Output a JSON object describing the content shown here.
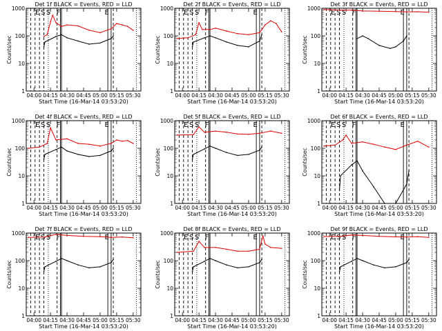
{
  "figure": {
    "panels": [
      {
        "title": "Det 1f  BLACK = Events, RED = LLD",
        "ylabel": "Counts/sec",
        "xlabel": "Start Time (16-Mar-14 03:53:20)"
      },
      {
        "title": "Det 2f  BLACK = Events, RED = LLD",
        "ylabel": "Counts/sec",
        "xlabel": "Start Time (16-Mar-14 03:53:20)"
      },
      {
        "title": "Det 3f  BLACK = Events, RED = LLD",
        "ylabel": "Counts/sec",
        "xlabel": "Start Time (16-Mar-14 03:53:20)"
      },
      {
        "title": "Det 4f  BLACK = Events, RED = LLD",
        "ylabel": "Counts/sec",
        "xlabel": "Start Time (16-Mar-14 03:53:20)"
      },
      {
        "title": "Det 5f  BLACK = Events, RED = LLD",
        "ylabel": "Counts/sec",
        "xlabel": "Start Time (16-Mar-14 03:53:20)"
      },
      {
        "title": "Det 6f  BLACK = Events, RED = LLD",
        "ylabel": "Counts/sec",
        "xlabel": "Start Time (16-Mar-14 03:53:20)"
      },
      {
        "title": "Det 7f  BLACK = Events, RED = LLD",
        "ylabel": "Counts/sec",
        "xlabel": "Start Time (16-Mar-14 03:53:20)"
      },
      {
        "title": "Det 8f  BLACK = Events, RED = LLD",
        "ylabel": "Counts/sec",
        "xlabel": "Start Time (16-Mar-14 03:53:20)"
      },
      {
        "title": "Det 9f  BLACK = Events, RED = LLD",
        "ylabel": "Counts/sec",
        "xlabel": "Start Time (16-Mar-14 03:53:20)"
      }
    ],
    "colors": {
      "events": "#000000",
      "lld": "#dd0000"
    }
  },
  "chart_data": [
    {
      "type": "line",
      "title": "Det 1f  BLACK = Events, RED = LLD",
      "xlabel": "Start Time (16-Mar-14 03:53:20)",
      "ylabel": "Counts/sec",
      "yscale": "log",
      "ylim": [
        1,
        1000
      ],
      "x_ticks": [
        "04:00",
        "04:15",
        "04:30",
        "04:45",
        "05:00",
        "05:15",
        "05:30"
      ],
      "y_ticks": [
        "1",
        "10",
        "100",
        "1000"
      ],
      "markers": [
        "E",
        "S",
        "S",
        "F",
        "E"
      ],
      "series": [
        {
          "name": "LLD",
          "x": [
            "04:09",
            "04:12",
            "04:15",
            "04:17",
            "04:20",
            "04:25",
            "04:30",
            "04:40",
            "04:50",
            "05:00",
            "05:10",
            "05:15",
            "05:20",
            "05:25",
            "05:30"
          ],
          "y": [
            95,
            110,
            320,
            560,
            300,
            220,
            250,
            230,
            160,
            130,
            180,
            280,
            250,
            220,
            160
          ]
        },
        {
          "name": "Events",
          "x": [
            "04:09",
            "04:10",
            "04:20",
            "04:25",
            "04:30",
            "04:40",
            "04:50",
            "05:00",
            "05:10",
            "05:12"
          ],
          "y": [
            40,
            60,
            95,
            110,
            85,
            65,
            50,
            55,
            80,
            100
          ]
        }
      ]
    },
    {
      "type": "line",
      "title": "Det 2f  BLACK = Events, RED = LLD",
      "xlabel": "Start Time (16-Mar-14 03:53:20)",
      "ylabel": "Counts/sec",
      "yscale": "log",
      "ylim": [
        1,
        1000
      ],
      "x_ticks": [
        "04:00",
        "04:15",
        "04:30",
        "04:45",
        "05:00",
        "05:15",
        "05:30"
      ],
      "y_ticks": [
        "1",
        "10",
        "100",
        "1000"
      ],
      "markers": [
        "E",
        "S",
        "S",
        "F",
        "E"
      ],
      "series": [
        {
          "name": "LLD",
          "x": [
            "03:55",
            "04:05",
            "04:12",
            "04:15",
            "04:18",
            "04:25",
            "04:30",
            "04:40",
            "04:50",
            "05:00",
            "05:10",
            "05:15",
            "05:20",
            "05:25",
            "05:30"
          ],
          "y": [
            80,
            85,
            110,
            300,
            170,
            170,
            190,
            150,
            120,
            110,
            130,
            250,
            350,
            280,
            140
          ]
        },
        {
          "name": "Events",
          "x": [
            "04:09",
            "04:10",
            "04:20",
            "04:25",
            "04:30",
            "04:40",
            "04:50",
            "05:00",
            "05:10",
            "05:12"
          ],
          "y": [
            40,
            60,
            85,
            100,
            85,
            60,
            45,
            40,
            65,
            110
          ]
        }
      ]
    },
    {
      "type": "line",
      "title": "Det 3f  BLACK = Events, RED = LLD",
      "xlabel": "Start Time (16-Mar-14 03:53:20)",
      "ylabel": "Counts/sec",
      "yscale": "log",
      "ylim": [
        1,
        1000
      ],
      "x_ticks": [
        "04:00",
        "04:15",
        "04:30",
        "04:45",
        "05:00",
        "05:15",
        "05:30"
      ],
      "y_ticks": [
        "1",
        "10",
        "100",
        "1000"
      ],
      "markers": [
        "E",
        "S",
        "S",
        "F",
        "E"
      ],
      "series": [
        {
          "name": "LLD",
          "x": [
            "03:55",
            "04:10",
            "04:20",
            "04:30",
            "04:45",
            "05:00",
            "05:10",
            "05:20",
            "05:30"
          ],
          "y": [
            900,
            850,
            850,
            800,
            780,
            760,
            740,
            750,
            720
          ]
        },
        {
          "name": "Events",
          "x": [
            "04:25",
            "04:30",
            "04:35",
            "04:45",
            "04:55",
            "05:00",
            "05:07",
            "05:10"
          ],
          "y": [
            80,
            100,
            80,
            45,
            35,
            40,
            65,
            100
          ]
        }
      ]
    },
    {
      "type": "line",
      "title": "Det 4f  BLACK = Events, RED = LLD",
      "xlabel": "Start Time (16-Mar-14 03:53:20)",
      "ylabel": "Counts/sec",
      "yscale": "log",
      "ylim": [
        1,
        1000
      ],
      "x_ticks": [
        "04:00",
        "04:15",
        "04:30",
        "04:45",
        "05:00",
        "05:15",
        "05:30"
      ],
      "y_ticks": [
        "1",
        "10",
        "100",
        "1000"
      ],
      "markers": [
        "E",
        "S",
        "S",
        "F",
        "E"
      ],
      "series": [
        {
          "name": "LLD",
          "x": [
            "03:55",
            "04:05",
            "04:12",
            "04:15",
            "04:20",
            "04:30",
            "04:40",
            "04:50",
            "05:00",
            "05:10",
            "05:15",
            "05:20",
            "05:25",
            "05:30"
          ],
          "y": [
            100,
            110,
            150,
            550,
            200,
            220,
            150,
            140,
            120,
            150,
            200,
            180,
            190,
            150
          ]
        },
        {
          "name": "Events",
          "x": [
            "04:09",
            "04:10",
            "04:20",
            "04:25",
            "04:30",
            "04:40",
            "04:50",
            "05:00",
            "05:10",
            "05:12"
          ],
          "y": [
            40,
            60,
            90,
            110,
            80,
            60,
            50,
            55,
            80,
            100
          ]
        }
      ]
    },
    {
      "type": "line",
      "title": "Det 5f  BLACK = Events, RED = LLD",
      "xlabel": "Start Time (16-Mar-14 03:53:20)",
      "ylabel": "Counts/sec",
      "yscale": "log",
      "ylim": [
        1,
        1000
      ],
      "x_ticks": [
        "04:00",
        "04:15",
        "04:30",
        "04:45",
        "05:00",
        "05:15",
        "05:30"
      ],
      "y_ticks": [
        "1",
        "10",
        "100",
        "1000"
      ],
      "markers": [
        "E",
        "S",
        "S",
        "F",
        "E"
      ],
      "series": [
        {
          "name": "LLD",
          "x": [
            "03:55",
            "04:10",
            "04:15",
            "04:20",
            "04:30",
            "04:40",
            "04:50",
            "05:00",
            "05:10",
            "05:20",
            "05:30"
          ],
          "y": [
            300,
            310,
            600,
            380,
            420,
            380,
            330,
            320,
            350,
            420,
            350
          ]
        },
        {
          "name": "Events",
          "x": [
            "04:09",
            "04:10",
            "04:20",
            "04:25",
            "04:30",
            "04:40",
            "04:50",
            "05:00",
            "05:10",
            "05:12"
          ],
          "y": [
            40,
            60,
            95,
            120,
            100,
            70,
            55,
            60,
            85,
            110
          ]
        }
      ]
    },
    {
      "type": "line",
      "title": "Det 6f  BLACK = Events, RED = LLD",
      "xlabel": "Start Time (16-Mar-14 03:53:20)",
      "ylabel": "Counts/sec",
      "yscale": "log",
      "ylim": [
        1,
        1000
      ],
      "x_ticks": [
        "04:00",
        "04:15",
        "04:30",
        "04:45",
        "05:00",
        "05:15",
        "05:30"
      ],
      "y_ticks": [
        "1",
        "10",
        "100",
        "1000"
      ],
      "markers": [
        "E",
        "S",
        "S",
        "F",
        "E"
      ],
      "series": [
        {
          "name": "LLD",
          "x": [
            "03:55",
            "04:05",
            "04:12",
            "04:15",
            "04:20",
            "04:30",
            "04:40",
            "04:50",
            "05:00",
            "05:10",
            "05:20",
            "05:30"
          ],
          "y": [
            120,
            130,
            200,
            300,
            150,
            170,
            140,
            110,
            90,
            130,
            180,
            110
          ]
        },
        {
          "name": "Events",
          "x": [
            "04:09",
            "04:10",
            "04:20",
            "04:25",
            "04:30",
            "04:40",
            "04:50",
            "05:00",
            "05:10",
            "05:12"
          ],
          "y": [
            3,
            10,
            25,
            35,
            15,
            4,
            1,
            1,
            5,
            15
          ]
        }
      ]
    },
    {
      "type": "line",
      "title": "Det 7f  BLACK = Events, RED = LLD",
      "xlabel": "Start Time (16-Mar-14 03:53:20)",
      "ylabel": "Counts/sec",
      "yscale": "log",
      "ylim": [
        1,
        1000
      ],
      "x_ticks": [
        "04:00",
        "04:15",
        "04:30",
        "04:45",
        "05:00",
        "05:15",
        "05:30"
      ],
      "y_ticks": [
        "1",
        "10",
        "100",
        "1000"
      ],
      "markers": [
        "E",
        "S",
        "S",
        "F",
        "E"
      ],
      "series": [
        {
          "name": "LLD",
          "x": [
            "03:55",
            "04:10",
            "04:20",
            "04:30",
            "04:45",
            "05:00",
            "05:10",
            "05:20",
            "05:30"
          ],
          "y": [
            700,
            720,
            900,
            820,
            760,
            740,
            700,
            720,
            680
          ]
        },
        {
          "name": "Events",
          "x": [
            "04:09",
            "04:10",
            "04:20",
            "04:25",
            "04:30",
            "04:40",
            "04:50",
            "05:00",
            "05:10",
            "05:12"
          ],
          "y": [
            40,
            60,
            95,
            120,
            100,
            70,
            55,
            60,
            85,
            110
          ]
        }
      ]
    },
    {
      "type": "line",
      "title": "Det 8f  BLACK = Events, RED = LLD",
      "xlabel": "Start Time (16-Mar-14 03:53:20)",
      "ylabel": "Counts/sec",
      "yscale": "log",
      "ylim": [
        1,
        1000
      ],
      "x_ticks": [
        "04:00",
        "04:15",
        "04:30",
        "04:45",
        "05:00",
        "05:15",
        "05:30"
      ],
      "y_ticks": [
        "1",
        "10",
        "100",
        "1000"
      ],
      "markers": [
        "E",
        "S",
        "S",
        "F",
        "E"
      ],
      "series": [
        {
          "name": "LLD",
          "x": [
            "03:55",
            "04:10",
            "04:15",
            "04:20",
            "04:30",
            "04:40",
            "04:50",
            "05:00",
            "05:10",
            "05:13",
            "05:15",
            "05:20",
            "05:30"
          ],
          "y": [
            200,
            220,
            500,
            300,
            300,
            260,
            220,
            220,
            260,
            800,
            400,
            300,
            280
          ]
        },
        {
          "name": "Events",
          "x": [
            "04:09",
            "04:10",
            "04:20",
            "04:25",
            "04:30",
            "04:40",
            "04:50",
            "05:00",
            "05:10",
            "05:12"
          ],
          "y": [
            40,
            60,
            95,
            120,
            100,
            70,
            55,
            60,
            85,
            110
          ]
        }
      ]
    },
    {
      "type": "line",
      "title": "Det 9f  BLACK = Events, RED = LLD",
      "xlabel": "Start Time (16-Mar-14 03:53:20)",
      "ylabel": "Counts/sec",
      "yscale": "log",
      "ylim": [
        1,
        1000
      ],
      "x_ticks": [
        "04:00",
        "04:15",
        "04:30",
        "04:45",
        "05:00",
        "05:15",
        "05:30"
      ],
      "y_ticks": [
        "1",
        "10",
        "100",
        "1000"
      ],
      "markers": [
        "E",
        "S",
        "S",
        "F",
        "E"
      ],
      "series": [
        {
          "name": "LLD",
          "x": [
            "03:55",
            "04:10",
            "04:20",
            "04:30",
            "04:45",
            "05:00",
            "05:10",
            "05:20",
            "05:30"
          ],
          "y": [
            750,
            760,
            850,
            820,
            760,
            730,
            720,
            740,
            700
          ]
        },
        {
          "name": "Events",
          "x": [
            "04:09",
            "04:10",
            "04:20",
            "04:25",
            "04:30",
            "04:40",
            "04:50",
            "05:00",
            "05:10",
            "05:12"
          ],
          "y": [
            40,
            60,
            95,
            120,
            100,
            70,
            55,
            60,
            85,
            110
          ]
        }
      ]
    }
  ]
}
